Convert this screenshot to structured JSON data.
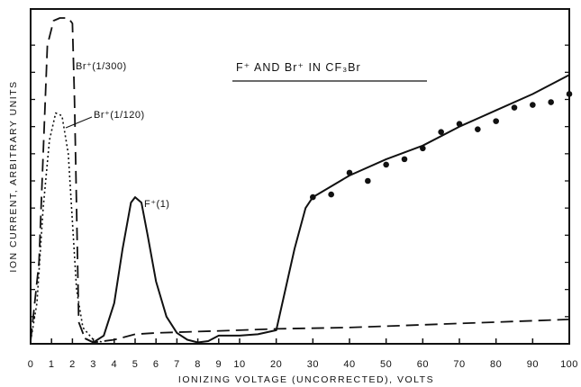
{
  "chart_data": {
    "type": "line",
    "title": "F⁺ AND Br⁺ IN CF₃Br",
    "xlabel": "IONIZING VOLTAGE (UNCORRECTED), VOLTS",
    "ylabel": "ION CURRENT, ARBITRARY UNITS",
    "x_ticks_low": [
      0,
      1,
      2,
      3,
      4,
      5,
      6,
      7,
      8,
      9,
      10
    ],
    "x_ticks_high": [
      20,
      30,
      40,
      50,
      60,
      70,
      80,
      90,
      100
    ],
    "x_scale_note": "axis expanded from 0 to 10 V, compressed from 10 to 100 V",
    "ylim": [
      0,
      12
    ],
    "series": [
      {
        "name": "Br⁺(1/300)",
        "style": "dashed",
        "x": [
          0,
          0.4,
          0.8,
          1.1,
          1.4,
          1.8,
          2.0,
          2.1,
          2.3,
          2.6,
          3,
          4,
          5,
          6,
          8,
          10,
          20,
          40,
          60,
          80,
          100
        ],
        "y": [
          0.1,
          3.0,
          11.0,
          11.9,
          12.0,
          12.0,
          11.8,
          9.0,
          0.8,
          0.2,
          0.05,
          0.15,
          0.35,
          0.4,
          0.45,
          0.5,
          0.55,
          0.6,
          0.7,
          0.8,
          0.9
        ]
      },
      {
        "name": "Br⁺(1/120)",
        "style": "dotted",
        "x": [
          0,
          0.3,
          0.6,
          0.9,
          1.2,
          1.5,
          1.8,
          2.0,
          2.2,
          2.5,
          3,
          3.5
        ],
        "y": [
          0.1,
          1.5,
          5.0,
          7.5,
          8.5,
          8.4,
          7.0,
          4.5,
          2.0,
          0.6,
          0.15,
          0.05
        ]
      },
      {
        "name": "F⁺(1)",
        "style": "solid",
        "x": [
          2.6,
          3,
          3.5,
          4,
          4.4,
          4.8,
          5,
          5.3,
          5.6,
          6,
          6.5,
          7,
          7.5,
          8,
          8.5,
          9,
          10,
          15,
          20,
          25,
          28,
          30,
          40,
          50,
          60,
          70,
          80,
          90,
          100
        ],
        "y": [
          0.2,
          0.05,
          0.3,
          1.5,
          3.5,
          5.2,
          5.4,
          5.2,
          4.0,
          2.3,
          1.0,
          0.4,
          0.15,
          0.05,
          0.1,
          0.3,
          0.3,
          0.35,
          0.5,
          3.5,
          5.0,
          5.4,
          6.2,
          6.8,
          7.3,
          8.0,
          8.6,
          9.2,
          9.9
        ]
      }
    ],
    "scatter_points": {
      "x": [
        30,
        35,
        40,
        45,
        50,
        55,
        60,
        65,
        70,
        75,
        80,
        85,
        90,
        95,
        100
      ],
      "y": [
        5.4,
        5.5,
        6.3,
        6.0,
        6.6,
        6.8,
        7.2,
        7.8,
        8.1,
        7.9,
        8.2,
        8.7,
        8.8,
        8.9,
        9.2
      ]
    }
  }
}
